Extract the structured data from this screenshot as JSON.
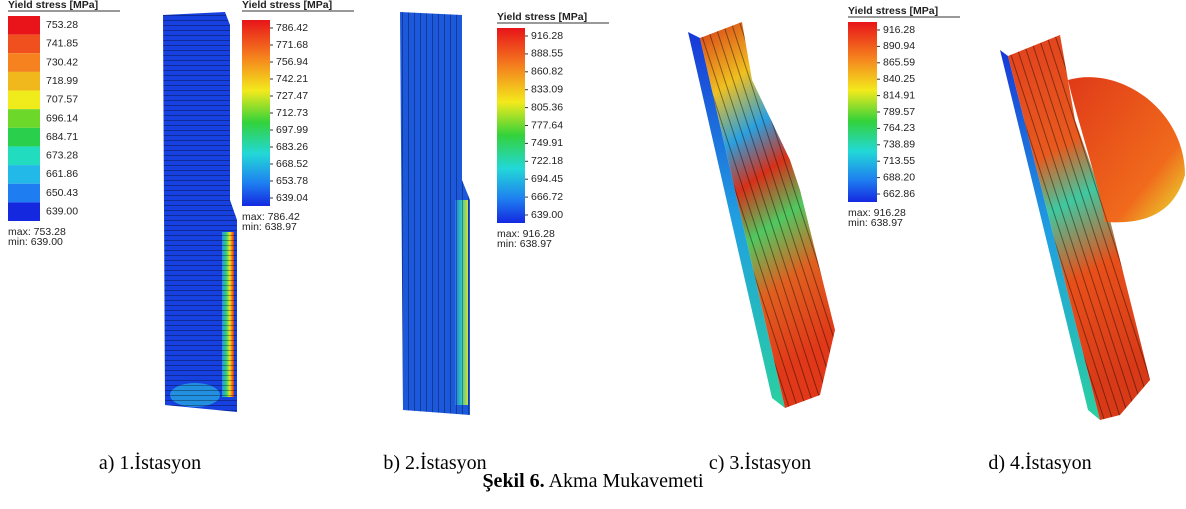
{
  "panels": [
    {
      "legend": {
        "title": "Yield stress [MPa]",
        "values": [
          "753.28",
          "741.85",
          "730.42",
          "718.99",
          "707.57",
          "696.14",
          "684.71",
          "673.28",
          "661.86",
          "650.43",
          "639.00"
        ],
        "max": "max: 753.28",
        "min": "min: 639.00"
      },
      "caption": "a) 1.İstasyon"
    },
    {
      "legend": {
        "title": "Yield stress [MPa]",
        "values": [
          "786.42",
          "771.68",
          "756.94",
          "742.21",
          "727.47",
          "712.73",
          "697.99",
          "683.26",
          "668.52",
          "653.78",
          "639.04"
        ],
        "max": "max: 786.42",
        "min": "min: 638.97"
      },
      "caption": "b) 2.İstasyon"
    },
    {
      "legend": {
        "title": "Yield stress [MPa]",
        "values": [
          "916.28",
          "888.55",
          "860.82",
          "833.09",
          "805.36",
          "777.64",
          "749.91",
          "722.18",
          "694.45",
          "666.72",
          "639.00"
        ],
        "max": "max: 916.28",
        "min": "min: 638.97"
      },
      "caption": "c) 3.İstasyon"
    },
    {
      "legend": {
        "title": "Yield stress [MPa]",
        "values": [
          "916.28",
          "890.94",
          "865.59",
          "840.25",
          "814.91",
          "789.57",
          "764.23",
          "738.89",
          "713.55",
          "688.20",
          "662.86"
        ],
        "max": "max: 916.28",
        "min": "min: 638.97"
      },
      "caption": "d) 4.İstasyon"
    }
  ],
  "figure_caption": {
    "label": "Şekil 6.",
    "text": "Akma Mukavemeti"
  }
}
